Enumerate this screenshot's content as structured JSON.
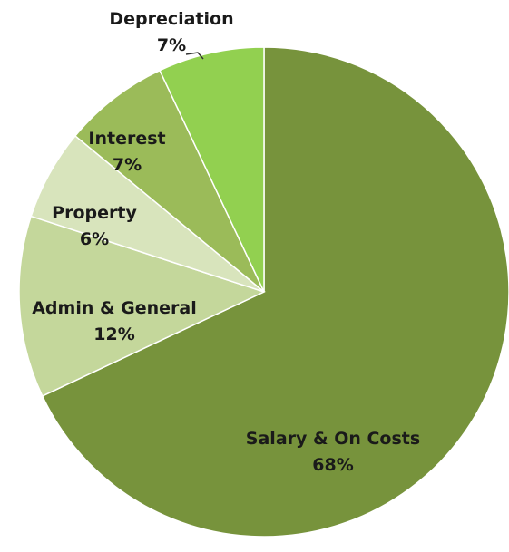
{
  "chart_data": {
    "type": "pie",
    "title": "",
    "start_category": "Salary & On Costs",
    "direction": "clockwise",
    "slices": [
      {
        "name": "Salary & On Costs",
        "percent_label": "68%",
        "value": 68,
        "color": "#77933c"
      },
      {
        "name": "Admin & General",
        "percent_label": "12%",
        "value": 12,
        "color": "#c4d79b"
      },
      {
        "name": "Property",
        "percent_label": "6%",
        "value": 6,
        "color": "#d8e4bc"
      },
      {
        "name": "Interest",
        "percent_label": "7%",
        "value": 7,
        "color": "#9bbb59"
      },
      {
        "name": "Depreciation",
        "percent_label": "7%",
        "value": 7,
        "color": "#92d050"
      }
    ],
    "legend": "none",
    "labels": "inside-except-depreciation-outside-with-leader"
  }
}
